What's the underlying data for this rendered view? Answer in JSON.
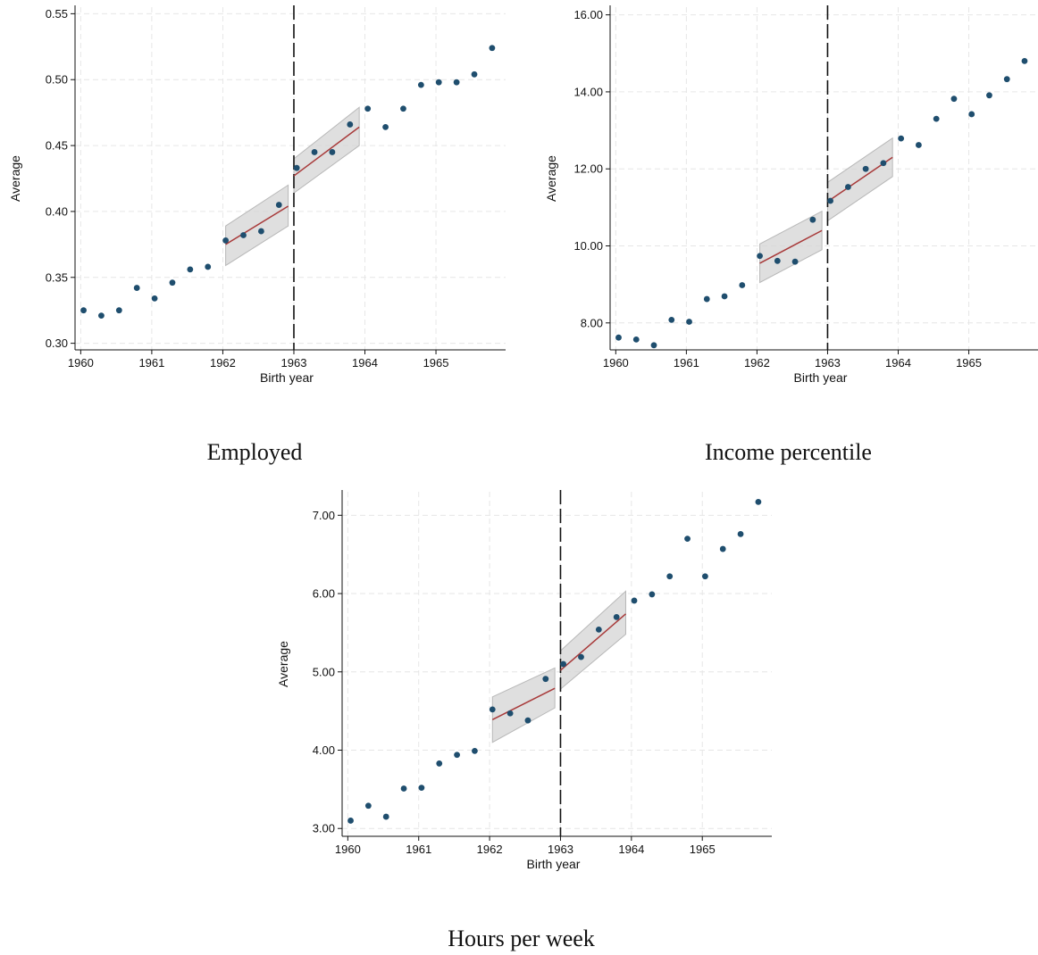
{
  "colors": {
    "point": "#1f4e6e",
    "fit_line": "#a83a3a",
    "ci_band": "#d4d4d4",
    "ci_band_edge": "#b8b8b8",
    "grid": "#e6e6e6",
    "cutoff": "#111111"
  },
  "chart_data": [
    {
      "type": "scatter",
      "title": "Employed",
      "xlabel": "Birth year",
      "ylabel": "Average",
      "xlim": [
        1959.92,
        1965.98
      ],
      "ylim": [
        0.295,
        0.555
      ],
      "xticks": [
        1960,
        1961,
        1962,
        1963,
        1964,
        1965
      ],
      "xtick_labels": [
        "1960",
        "1961",
        "1962",
        "1963",
        "1964",
        "1965"
      ],
      "yticks": [
        0.3,
        0.35,
        0.4,
        0.45,
        0.5,
        0.55
      ],
      "ytick_labels": [
        "0.30",
        "0.35",
        "0.40",
        "0.45",
        "0.50",
        "0.55"
      ],
      "grid": true,
      "cutoff_x": 1963,
      "points": [
        [
          1960.04,
          0.325
        ],
        [
          1960.29,
          0.321
        ],
        [
          1960.54,
          0.325
        ],
        [
          1960.79,
          0.342
        ],
        [
          1961.04,
          0.334
        ],
        [
          1961.29,
          0.346
        ],
        [
          1961.54,
          0.356
        ],
        [
          1961.79,
          0.358
        ],
        [
          1962.04,
          0.378
        ],
        [
          1962.29,
          0.382
        ],
        [
          1962.54,
          0.385
        ],
        [
          1962.79,
          0.405
        ],
        [
          1963.04,
          0.433
        ],
        [
          1963.29,
          0.445
        ],
        [
          1963.54,
          0.445
        ],
        [
          1963.79,
          0.466
        ],
        [
          1964.04,
          0.478
        ],
        [
          1964.29,
          0.464
        ],
        [
          1964.54,
          0.478
        ],
        [
          1964.79,
          0.496
        ],
        [
          1965.04,
          0.498
        ],
        [
          1965.29,
          0.498
        ],
        [
          1965.54,
          0.504
        ],
        [
          1965.79,
          0.524
        ]
      ],
      "fits": [
        {
          "x": [
            1962.04,
            1962.92
          ],
          "y": [
            0.375,
            0.404
          ],
          "lo": [
            0.359,
            0.389
          ],
          "hi": [
            0.389,
            0.42
          ]
        },
        {
          "x": [
            1963.0,
            1963.92
          ],
          "y": [
            0.427,
            0.464
          ],
          "lo": [
            0.414,
            0.45
          ],
          "hi": [
            0.44,
            0.479
          ]
        }
      ]
    },
    {
      "type": "scatter",
      "title": "Income percentile",
      "xlabel": "Birth year",
      "ylabel": "Average",
      "xlim": [
        1959.92,
        1965.98
      ],
      "ylim": [
        7.3,
        16.2
      ],
      "xticks": [
        1960,
        1961,
        1962,
        1963,
        1964,
        1965
      ],
      "xtick_labels": [
        "1960",
        "1961",
        "1962",
        "1963",
        "1964",
        "1965"
      ],
      "yticks": [
        8,
        10,
        12,
        14,
        16
      ],
      "ytick_labels": [
        "8.00",
        "10.00",
        "12.00",
        "14.00",
        "16.00"
      ],
      "grid": true,
      "cutoff_x": 1963,
      "points": [
        [
          1960.04,
          7.62
        ],
        [
          1960.29,
          7.57
        ],
        [
          1960.54,
          7.42
        ],
        [
          1960.79,
          8.08
        ],
        [
          1961.04,
          8.03
        ],
        [
          1961.29,
          8.62
        ],
        [
          1961.54,
          8.69
        ],
        [
          1961.79,
          8.98
        ],
        [
          1962.04,
          9.74
        ],
        [
          1962.29,
          9.61
        ],
        [
          1962.54,
          9.59
        ],
        [
          1962.79,
          10.68
        ],
        [
          1963.04,
          11.17
        ],
        [
          1963.29,
          11.53
        ],
        [
          1963.54,
          12.0
        ],
        [
          1963.79,
          12.15
        ],
        [
          1964.04,
          12.79
        ],
        [
          1964.29,
          12.62
        ],
        [
          1964.54,
          13.3
        ],
        [
          1964.79,
          13.82
        ],
        [
          1965.04,
          13.42
        ],
        [
          1965.29,
          13.91
        ],
        [
          1965.54,
          14.33
        ],
        [
          1965.79,
          14.8
        ]
      ],
      "fits": [
        {
          "x": [
            1962.04,
            1962.92
          ],
          "y": [
            9.55,
            10.4
          ],
          "lo": [
            9.05,
            9.9
          ],
          "hi": [
            10.05,
            10.9
          ]
        },
        {
          "x": [
            1963.0,
            1963.92
          ],
          "y": [
            11.15,
            12.3
          ],
          "lo": [
            10.65,
            11.8
          ],
          "hi": [
            11.65,
            12.8
          ]
        }
      ]
    },
    {
      "type": "scatter",
      "title": "Hours per week",
      "xlabel": "Birth year",
      "ylabel": "Average",
      "xlim": [
        1959.92,
        1965.98
      ],
      "ylim": [
        2.9,
        7.3
      ],
      "xticks": [
        1960,
        1961,
        1962,
        1963,
        1964,
        1965
      ],
      "xtick_labels": [
        "1960",
        "1961",
        "1962",
        "1963",
        "1964",
        "1965"
      ],
      "yticks": [
        3,
        4,
        5,
        6,
        7
      ],
      "ytick_labels": [
        "3.00",
        "4.00",
        "5.00",
        "6.00",
        "7.00"
      ],
      "grid": true,
      "cutoff_x": 1963,
      "points": [
        [
          1960.04,
          3.1
        ],
        [
          1960.29,
          3.29
        ],
        [
          1960.54,
          3.15
        ],
        [
          1960.79,
          3.51
        ],
        [
          1961.04,
          3.52
        ],
        [
          1961.29,
          3.83
        ],
        [
          1961.54,
          3.94
        ],
        [
          1961.79,
          3.99
        ],
        [
          1962.04,
          4.52
        ],
        [
          1962.29,
          4.47
        ],
        [
          1962.54,
          4.38
        ],
        [
          1962.79,
          4.91
        ],
        [
          1963.04,
          5.1
        ],
        [
          1963.29,
          5.19
        ],
        [
          1963.54,
          5.54
        ],
        [
          1963.79,
          5.7
        ],
        [
          1964.04,
          5.91
        ],
        [
          1964.29,
          5.99
        ],
        [
          1964.54,
          6.22
        ],
        [
          1964.79,
          6.7
        ],
        [
          1965.04,
          6.22
        ],
        [
          1965.29,
          6.57
        ],
        [
          1965.54,
          6.76
        ],
        [
          1965.79,
          7.17
        ]
      ],
      "fits": [
        {
          "x": [
            1962.04,
            1962.92
          ],
          "y": [
            4.39,
            4.79
          ],
          "lo": [
            4.1,
            4.54
          ],
          "hi": [
            4.68,
            5.05
          ]
        },
        {
          "x": [
            1963.0,
            1963.92
          ],
          "y": [
            5.02,
            5.74
          ],
          "lo": [
            4.78,
            5.48
          ],
          "hi": [
            5.27,
            6.03
          ]
        }
      ]
    }
  ]
}
